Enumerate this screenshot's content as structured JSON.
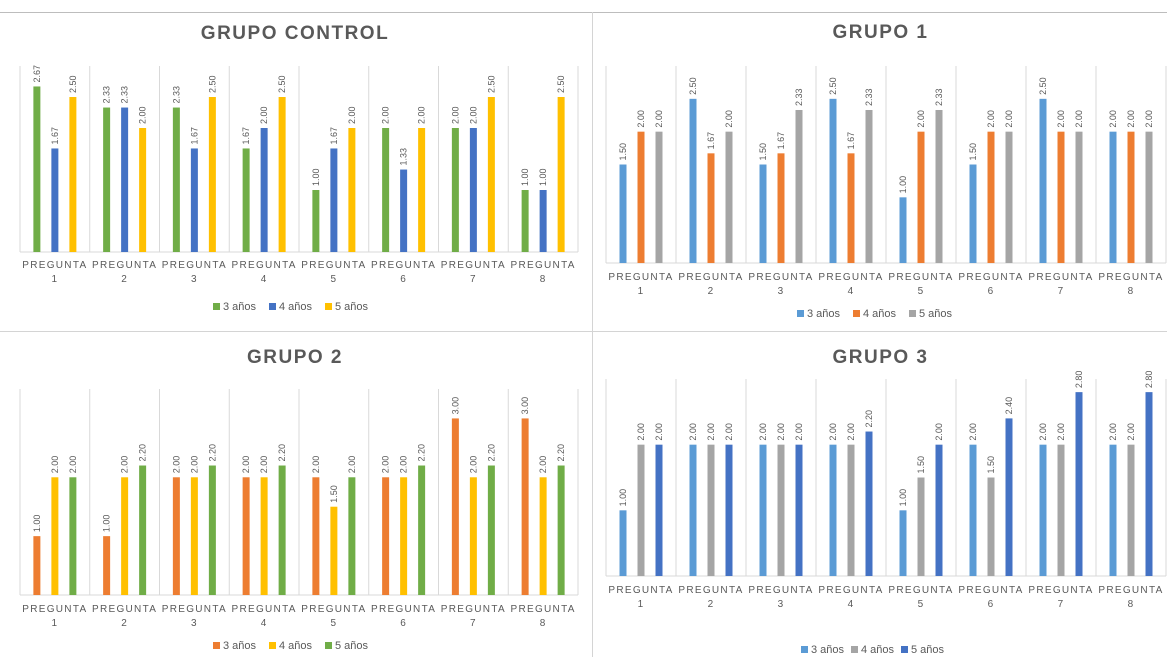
{
  "chart_data": [
    {
      "type": "bar",
      "title": "GRUPO CONTROL",
      "categories": [
        [
          "PREGUNTA",
          "1"
        ],
        [
          "PREGUNTA",
          "2"
        ],
        [
          "PREGUNTA",
          "3"
        ],
        [
          "PREGUNTA",
          "4"
        ],
        [
          "PREGUNTA",
          "5"
        ],
        [
          "PREGUNTA",
          "6"
        ],
        [
          "PREGUNTA",
          "7"
        ],
        [
          "PREGUNTA",
          "8"
        ]
      ],
      "ylim": [
        0,
        3
      ],
      "grid": false,
      "legend_position": "bottom",
      "series": [
        {
          "name": "3 años",
          "color": "#70ad47",
          "values": [
            2.67,
            2.33,
            2.33,
            1.67,
            1.0,
            2.0,
            2.0,
            1.0
          ],
          "labels": [
            "2.67",
            "2.33",
            "2.33",
            "1.67",
            "1.00",
            "2.00",
            "2.00",
            "1.00"
          ]
        },
        {
          "name": "4 años",
          "color": "#4472c4",
          "values": [
            1.67,
            2.33,
            1.67,
            2.0,
            1.67,
            1.33,
            2.0,
            1.0
          ],
          "labels": [
            "1.67",
            "2.33",
            "1.67",
            "2.00",
            "1.67",
            "1.33",
            "2.00",
            "1.00"
          ]
        },
        {
          "name": "5 años",
          "color": "#ffc000",
          "values": [
            2.5,
            2.0,
            2.5,
            2.5,
            2.0,
            2.0,
            2.5,
            2.5
          ],
          "labels": [
            "2.50",
            "2.00",
            "2.50",
            "2.50",
            "2.00",
            "2.00",
            "2.50",
            "2.50"
          ]
        }
      ]
    },
    {
      "type": "bar",
      "title": "GRUPO 1",
      "categories": [
        [
          "PREGUNTA",
          "1"
        ],
        [
          "PREGUNTA",
          "2"
        ],
        [
          "PREGUNTA",
          "3"
        ],
        [
          "PREGUNTA",
          "4"
        ],
        [
          "PREGUNTA",
          "5"
        ],
        [
          "PREGUNTA",
          "6"
        ],
        [
          "PREGUNTA",
          "7"
        ],
        [
          "PREGUNTA",
          "8"
        ]
      ],
      "ylim": [
        0,
        3
      ],
      "grid": false,
      "legend_position": "bottom",
      "series": [
        {
          "name": "3 años",
          "color": "#5b9bd5",
          "values": [
            1.5,
            2.5,
            1.5,
            2.5,
            1.0,
            1.5,
            2.5,
            2.0
          ],
          "labels": [
            "1.50",
            "2.50",
            "1.50",
            "2.50",
            "1.00",
            "1.50",
            "2.50",
            "2.00"
          ]
        },
        {
          "name": "4 años",
          "color": "#ed7d31",
          "values": [
            2.0,
            1.67,
            1.67,
            1.67,
            2.0,
            2.0,
            2.0,
            2.0
          ],
          "labels": [
            "2.00",
            "1.67",
            "1.67",
            "1.67",
            "2.00",
            "2.00",
            "2.00",
            "2.00"
          ]
        },
        {
          "name": "5 años",
          "color": "#a5a5a5",
          "values": [
            2.0,
            2.0,
            2.33,
            2.33,
            2.33,
            2.0,
            2.0,
            2.0
          ],
          "labels": [
            "2.00",
            "2.00",
            "2.33",
            "2.33",
            "2.33",
            "2.00",
            "2.00",
            "2.00"
          ]
        }
      ]
    },
    {
      "type": "bar",
      "title": "GRUPO 2",
      "categories": [
        [
          "PREGUNTA",
          "1"
        ],
        [
          "PREGUNTA",
          "2"
        ],
        [
          "PREGUNTA",
          "3"
        ],
        [
          "PREGUNTA",
          "4"
        ],
        [
          "PREGUNTA",
          "5"
        ],
        [
          "PREGUNTA",
          "6"
        ],
        [
          "PREGUNTA",
          "7"
        ],
        [
          "PREGUNTA",
          "8"
        ]
      ],
      "ylim": [
        0,
        3.5
      ],
      "grid": false,
      "legend_position": "bottom",
      "series": [
        {
          "name": "3 años",
          "color": "#ed7d31",
          "values": [
            1.0,
            1.0,
            2.0,
            2.0,
            2.0,
            2.0,
            3.0,
            3.0
          ],
          "labels": [
            "1.00",
            "1.00",
            "2.00",
            "2.00",
            "2.00",
            "2.00",
            "3.00",
            "3.00"
          ]
        },
        {
          "name": "4 años",
          "color": "#ffc000",
          "values": [
            2.0,
            2.0,
            2.0,
            2.0,
            1.5,
            2.0,
            2.0,
            2.0
          ],
          "labels": [
            "2.00",
            "2.00",
            "2.00",
            "2.00",
            "1.50",
            "2.00",
            "2.00",
            "2.00"
          ]
        },
        {
          "name": "5 años",
          "color": "#70ad47",
          "values": [
            2.0,
            2.2,
            2.2,
            2.2,
            2.0,
            2.2,
            2.2,
            2.2
          ],
          "labels": [
            "2.00",
            "2.20",
            "2.20",
            "2.20",
            "2.00",
            "2.20",
            "2.20",
            "2.20"
          ]
        }
      ]
    },
    {
      "type": "bar",
      "title": "GRUPO 3",
      "categories": [
        [
          "PREGUNTA",
          "1"
        ],
        [
          "PREGUNTA",
          "2"
        ],
        [
          "PREGUNTA",
          "3"
        ],
        [
          "PREGUNTA",
          "4"
        ],
        [
          "PREGUNTA",
          "5"
        ],
        [
          "PREGUNTA",
          "6"
        ],
        [
          "PREGUNTA",
          "7"
        ],
        [
          "PREGUNTA",
          "8"
        ]
      ],
      "ylim": [
        0,
        3
      ],
      "grid": false,
      "legend_position": "bottom",
      "series": [
        {
          "name": "3 años",
          "color": "#5b9bd5",
          "values": [
            1.0,
            2.0,
            2.0,
            2.0,
            1.0,
            2.0,
            2.0,
            2.0
          ],
          "labels": [
            "1.00",
            "2.00",
            "2.00",
            "2.00",
            "1.00",
            "2.00",
            "2.00",
            "2.00"
          ]
        },
        {
          "name": "4 años",
          "color": "#a5a5a5",
          "values": [
            2.0,
            2.0,
            2.0,
            2.0,
            1.5,
            1.5,
            2.0,
            2.0
          ],
          "labels": [
            "2.00",
            "2.00",
            "2.00",
            "2.00",
            "1.50",
            "1.50",
            "2.00",
            "2.00"
          ]
        },
        {
          "name": "5 años",
          "color": "#4472c4",
          "values": [
            2.0,
            2.0,
            2.0,
            2.2,
            2.0,
            2.4,
            2.8,
            2.8
          ],
          "labels": [
            "2.00",
            "2.00",
            "2.00",
            "2.20",
            "2.00",
            "2.40",
            "2.80",
            "2.80"
          ]
        }
      ]
    }
  ]
}
